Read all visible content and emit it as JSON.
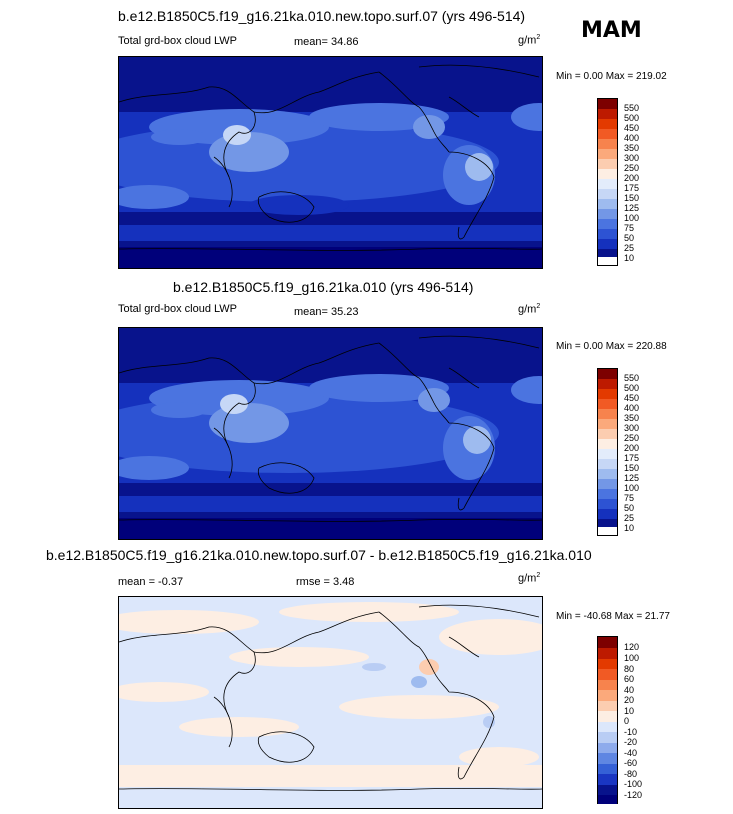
{
  "season": "MAM",
  "panels": [
    {
      "title": "b.e12.B1850C5.f19_g16.21ka.010.new.topo.surf.07 (yrs 496-514)",
      "left_label": "Total grd-box cloud LWP",
      "mid_label": "mean=  34.86",
      "units": "g/m",
      "units_exp": "2",
      "minmax": "Min =   0.00 Max = 219.02",
      "levels": [
        "550",
        "500",
        "450",
        "400",
        "350",
        "300",
        "250",
        "200",
        "175",
        "150",
        "125",
        "100",
        "75",
        "50",
        "25",
        "10"
      ],
      "colors": [
        "#7d0000",
        "#bd1a00",
        "#e33a00",
        "#f15a24",
        "#f7834d",
        "#fba97b",
        "#fccdb0",
        "#fdeee3",
        "#e3ecfb",
        "#c6d7f6",
        "#9ebbef",
        "#7397e6",
        "#4b74e0",
        "#2d53d3",
        "#1531bd",
        "#08138c",
        "#00007a"
      ]
    },
    {
      "title": "b.e12.B1850C5.f19_g16.21ka.010 (yrs 496-514)",
      "left_label": "Total grd-box cloud LWP",
      "mid_label": "mean=  35.23",
      "units": "g/m",
      "units_exp": "2",
      "minmax": "Min =   0.00 Max = 220.88",
      "levels": [
        "550",
        "500",
        "450",
        "400",
        "350",
        "300",
        "250",
        "200",
        "175",
        "150",
        "125",
        "100",
        "75",
        "50",
        "25",
        "10"
      ],
      "colors": [
        "#7d0000",
        "#bd1a00",
        "#e33a00",
        "#f15a24",
        "#f7834d",
        "#fba97b",
        "#fccdb0",
        "#fdeee3",
        "#e3ecfb",
        "#c6d7f6",
        "#9ebbef",
        "#7397e6",
        "#4b74e0",
        "#2d53d3",
        "#1531bd",
        "#08138c",
        "#00007a"
      ]
    },
    {
      "title": "b.e12.B1850C5.f19_g16.21ka.010.new.topo.surf.07 - b.e12.B1850C5.f19_g16.21ka.010",
      "left_label": "mean =  -0.37",
      "mid_label": "rmse =   3.48",
      "units": "g/m",
      "units_exp": "2",
      "minmax": "Min = -40.68 Max =  21.77",
      "levels": [
        "120",
        "100",
        "80",
        "60",
        "40",
        "20",
        "10",
        "0",
        "-10",
        "-20",
        "-40",
        "-60",
        "-80",
        "-100",
        "-120"
      ],
      "colors": [
        "#7d0000",
        "#bd1a00",
        "#e33a00",
        "#f15a24",
        "#f7834d",
        "#fba97b",
        "#fccdb0",
        "#fdeee3",
        "#dce7fb",
        "#b9cdf4",
        "#8eabec",
        "#5f86e2",
        "#3560d6",
        "#1a36c2",
        "#08138c",
        "#00007a"
      ]
    }
  ],
  "chart_data": [
    {
      "type": "heatmap",
      "title": "b.e12.B1850C5.f19_g16.21ka.010.new.topo.surf.07 (yrs 496-514)",
      "variable": "Total grd-box cloud LWP",
      "units": "g/m2",
      "mean": 34.86,
      "min": 0.0,
      "max": 219.02,
      "contour_levels": [
        10,
        25,
        50,
        75,
        100,
        125,
        150,
        175,
        200,
        250,
        300,
        350,
        400,
        450,
        500,
        550
      ]
    },
    {
      "type": "heatmap",
      "title": "b.e12.B1850C5.f19_g16.21ka.010 (yrs 496-514)",
      "variable": "Total grd-box cloud LWP",
      "units": "g/m2",
      "mean": 35.23,
      "min": 0.0,
      "max": 220.88,
      "contour_levels": [
        10,
        25,
        50,
        75,
        100,
        125,
        150,
        175,
        200,
        250,
        300,
        350,
        400,
        450,
        500,
        550
      ]
    },
    {
      "type": "heatmap",
      "title": "b.e12.B1850C5.f19_g16.21ka.010.new.topo.surf.07 - b.e12.B1850C5.f19_g16.21ka.010",
      "units": "g/m2",
      "mean": -0.37,
      "rmse": 3.48,
      "min": -40.68,
      "max": 21.77,
      "contour_levels": [
        -120,
        -100,
        -80,
        -60,
        -40,
        -20,
        -10,
        0,
        10,
        20,
        40,
        60,
        80,
        100,
        120
      ]
    }
  ]
}
